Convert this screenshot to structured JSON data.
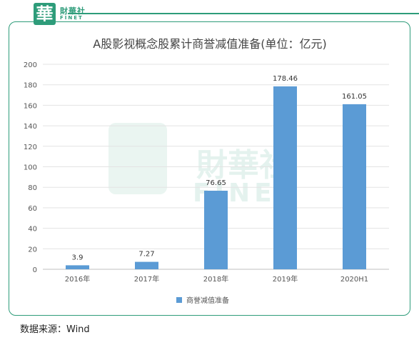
{
  "brand": {
    "logo_char": "華",
    "name_cn": "財華社",
    "name_en": "FINET"
  },
  "source": "数据来源：Wind",
  "chart_data": {
    "type": "bar",
    "title": "A股影视概念股累计商誉减值准备(单位：亿元)",
    "categories": [
      "2016年",
      "2017年",
      "2018年",
      "2019年",
      "2020H1"
    ],
    "series": [
      {
        "name": "商誉减值准备",
        "values": [
          3.9,
          7.27,
          76.65,
          178.46,
          161.05
        ],
        "color": "#5b9bd5"
      }
    ],
    "data_labels": [
      "3.9",
      "7.27",
      "76.65",
      "178.46",
      "161.05"
    ],
    "ylim": [
      0,
      200
    ],
    "yticks": [
      0,
      20,
      40,
      60,
      80,
      100,
      120,
      140,
      160,
      180,
      200
    ],
    "grid": true,
    "legend_position": "bottom"
  }
}
